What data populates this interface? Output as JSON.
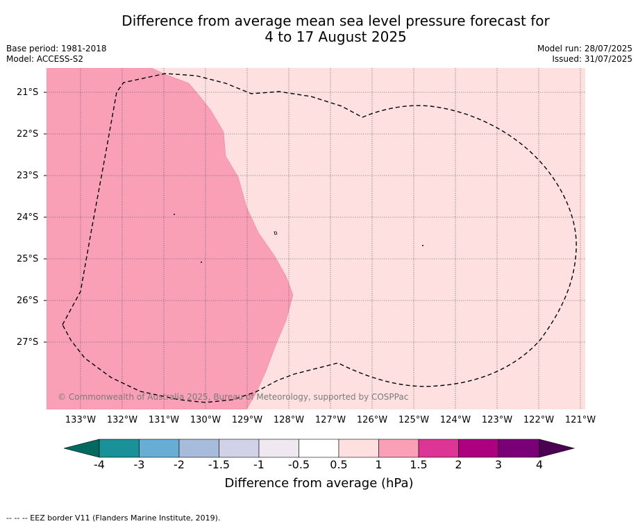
{
  "title": {
    "line1": "Difference from average mean sea level pressure forecast for",
    "line2": "4 to 17 August 2025"
  },
  "meta": {
    "base_period": "Base period: 1981-2018",
    "model": "Model: ACCESS-S2",
    "model_run": "Model run: 28/07/2025",
    "issued": "Issued: 31/07/2025"
  },
  "map": {
    "latitude_labels": [
      "21°S",
      "22°S",
      "23°S",
      "24°S",
      "25°S",
      "26°S",
      "27°S"
    ],
    "longitude_labels": [
      "133°W",
      "132°W",
      "131°W",
      "130°W",
      "129°W",
      "128°W",
      "127°W",
      "126°W",
      "125°W",
      "124°W",
      "123°W",
      "122°W",
      "121°W"
    ],
    "copyright": "© Commonwealth of Australia 2025, Bureau of Meteorology, supported by COSPPac",
    "regions": [
      {
        "range": "1 to 1.5",
        "color": "#f9a0b6",
        "extent": "western part of map"
      },
      {
        "range": "0.5 to 1",
        "color": "#fee0e0",
        "extent": "central and eastern part of map"
      }
    ],
    "eez_line_style": "dashed black"
  },
  "colorbar": {
    "ticks": [
      "-4",
      "-3",
      "-2",
      "-1.5",
      "-1",
      "-0.5",
      "0.5",
      "1",
      "1.5",
      "2",
      "3",
      "4"
    ],
    "colors": [
      "#1a9098",
      "#68aed4",
      "#a7bbdc",
      "#d1d2e7",
      "#efe8f1",
      "#ffffff",
      "#fee0e0",
      "#f9a0b6",
      "#dc3595",
      "#ad007f",
      "#7a0078"
    ],
    "under_color": "#016a60",
    "over_color": "#4b0052",
    "label": "Difference from average (hPa)"
  },
  "footer": "--  --  -- EEZ border V11 (Flanders Marine Institute, 2019)."
}
